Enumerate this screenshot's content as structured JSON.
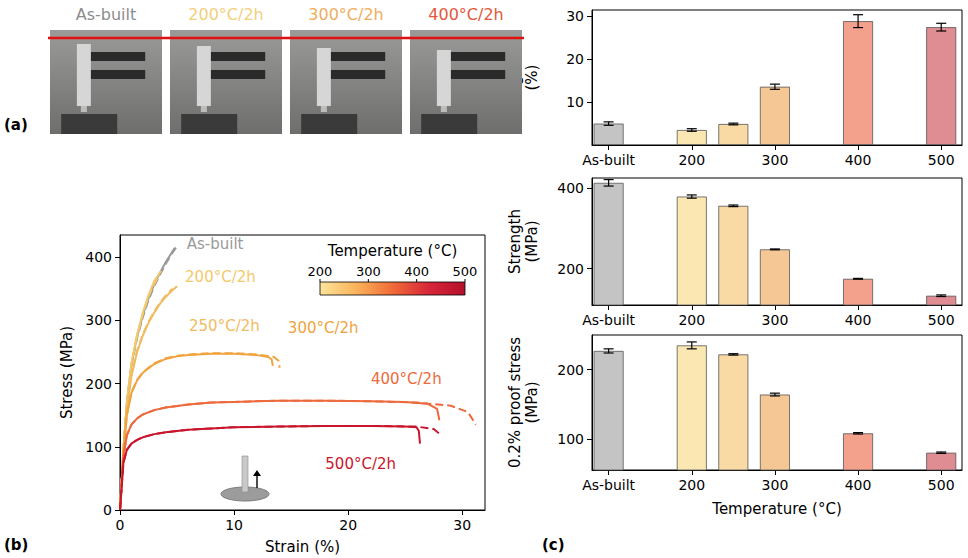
{
  "panel_labels": [
    "(a)",
    "(b)",
    "(c)"
  ],
  "photos": {
    "labels": [
      "As-built",
      "200°C/2h",
      "300°C/2h",
      "400°C/2h"
    ],
    "colors": [
      "#8c8c8c",
      "#f2cf7a",
      "#f0ad5c",
      "#e4573a"
    ]
  },
  "chart_data": [
    {
      "type": "line",
      "x_label": "Strain (%)",
      "y_label": "Stress (MPa)",
      "xlim": [
        0,
        32
      ],
      "xticks": [
        0,
        10,
        20,
        30
      ],
      "ylim": [
        0,
        435
      ],
      "yticks": [
        0,
        100,
        200,
        300,
        400
      ],
      "grid": false,
      "colorbar": {
        "title": "Temperature (°C)",
        "range": [
          200,
          500
        ],
        "ticks": [
          200,
          300,
          400,
          500
        ],
        "colors": [
          "#fde49a",
          "#f9b35a",
          "#f06b38",
          "#d7263a",
          "#b5102a"
        ]
      },
      "series": [
        {
          "name": "As-built",
          "color": "#9a9a9a",
          "line_style": "solid",
          "x": [
            0,
            0.3,
            0.6,
            1,
            1.5,
            2,
            2.5,
            3,
            3.5,
            4,
            4.5,
            4.8
          ],
          "values": [
            0,
            95,
            170,
            230,
            275,
            308,
            335,
            357,
            375,
            392,
            406,
            415
          ]
        },
        {
          "name": "As-built",
          "color": "#9a9a9a",
          "line_style": "dashed",
          "x": [
            0,
            0.3,
            0.6,
            1,
            1.5,
            2,
            2.5,
            3,
            3.5,
            4,
            4.5,
            5.1
          ],
          "values": [
            0,
            95,
            168,
            228,
            272,
            305,
            332,
            354,
            372,
            389,
            404,
            420
          ]
        },
        {
          "name": "200°C/2h",
          "color": "#f3c96a",
          "line_style": "solid",
          "x": [
            0,
            0.3,
            0.6,
            1,
            1.5,
            2,
            2.5,
            3,
            3.6
          ],
          "values": [
            0,
            95,
            170,
            232,
            278,
            312,
            340,
            362,
            378
          ]
        },
        {
          "name": "200°C/2h",
          "color": "#f3c96a",
          "line_style": "dashed",
          "x": [
            0,
            0.3,
            0.6,
            1,
            1.5,
            2,
            2.5,
            3,
            3.3
          ],
          "values": [
            0,
            95,
            170,
            231,
            276,
            310,
            338,
            358,
            367
          ]
        },
        {
          "name": "250°C/2h",
          "color": "#f1bb60",
          "line_style": "solid",
          "x": [
            0,
            0.3,
            0.6,
            1,
            1.5,
            2,
            2.5,
            3,
            3.5,
            4,
            4.5,
            5
          ],
          "values": [
            0,
            92,
            160,
            212,
            250,
            276,
            296,
            312,
            326,
            337,
            346,
            354
          ]
        },
        {
          "name": "250°C/2h",
          "color": "#f1bb60",
          "line_style": "dashed",
          "x": [
            0,
            0.3,
            0.6,
            1,
            1.5,
            2,
            2.5,
            3,
            3.5,
            4,
            4.6
          ],
          "values": [
            0,
            92,
            160,
            213,
            252,
            278,
            298,
            314,
            328,
            339,
            350
          ]
        },
        {
          "name": "300°C/2h",
          "color": "#f0a33e",
          "line_style": "solid",
          "x": [
            0,
            0.3,
            0.6,
            1,
            1.5,
            2,
            3,
            4,
            5,
            6,
            8,
            10,
            12,
            13,
            13.3,
            13.4
          ],
          "values": [
            0,
            90,
            150,
            185,
            205,
            217,
            231,
            239,
            243,
            245,
            247,
            247,
            245,
            242,
            238,
            228
          ]
        },
        {
          "name": "300°C/2h",
          "color": "#f0a33e",
          "line_style": "dashed",
          "x": [
            0,
            0.3,
            0.6,
            1,
            1.5,
            2,
            3,
            4,
            5,
            6,
            8,
            10,
            12,
            13.5,
            13.9,
            14
          ],
          "values": [
            0,
            90,
            150,
            186,
            206,
            218,
            232,
            240,
            244,
            246,
            248,
            248,
            246,
            242,
            236,
            225
          ]
        },
        {
          "name": "400°C/2h",
          "color": "#ec6a3c",
          "line_style": "solid",
          "x": [
            0,
            0.3,
            0.6,
            1,
            1.5,
            2,
            3,
            4,
            6,
            8,
            10,
            14,
            18,
            22,
            25,
            27,
            27.8,
            28
          ],
          "values": [
            0,
            85,
            118,
            135,
            145,
            151,
            158,
            162,
            167,
            170,
            171,
            173,
            173,
            172,
            171,
            168,
            160,
            142
          ]
        },
        {
          "name": "400°C/2h",
          "color": "#ec6a3c",
          "line_style": "dashed",
          "x": [
            0,
            0.3,
            0.6,
            1,
            1.5,
            2,
            3,
            4,
            6,
            8,
            10,
            14,
            18,
            22,
            26,
            29,
            30.5,
            31.2
          ],
          "values": [
            0,
            85,
            118,
            135,
            145,
            151,
            158,
            162,
            167,
            170,
            171,
            173,
            173,
            172,
            170,
            165,
            155,
            135
          ]
        },
        {
          "name": "500°C/2h",
          "color": "#c8162c",
          "line_style": "solid",
          "x": [
            0,
            0.3,
            0.6,
            1,
            1.5,
            2,
            3,
            4,
            6,
            8,
            10,
            14,
            18,
            22,
            25,
            26,
            26.2,
            26.3
          ],
          "values": [
            0,
            75,
            95,
            105,
            111,
            115,
            120,
            123,
            127,
            129,
            131,
            132,
            133,
            133,
            132,
            131,
            125,
            105
          ]
        },
        {
          "name": "500°C/2h",
          "color": "#c8162c",
          "line_style": "dashed",
          "x": [
            0,
            0.3,
            0.6,
            1,
            1.5,
            2,
            3,
            4,
            6,
            8,
            10,
            14,
            18,
            22,
            26,
            27.5,
            28.2
          ],
          "values": [
            0,
            75,
            95,
            105,
            111,
            115,
            120,
            123,
            127,
            129,
            131,
            132,
            133,
            133,
            132,
            128,
            118
          ]
        }
      ]
    },
    {
      "type": "bar",
      "y_label": "Elongation (%)",
      "x": [
        100,
        200,
        250,
        300,
        400,
        500
      ],
      "values": [
        5.0,
        3.5,
        4.9,
        13.6,
        28.9,
        27.5
      ],
      "errors": [
        0.4,
        0.3,
        0.2,
        0.6,
        1.5,
        0.9
      ],
      "colors": [
        "#c4c4c4",
        "#fbe7b2",
        "#f9d9a4",
        "#f5c795",
        "#f3a08c",
        "#df8c92"
      ],
      "xlim": [
        80,
        525
      ],
      "xticks": [
        {
          "value": 100,
          "label": "As-built"
        },
        200,
        300,
        400,
        500
      ],
      "ylim": [
        0,
        31.5
      ],
      "yticks": [
        10,
        20,
        30
      ],
      "grid": false
    },
    {
      "type": "bar",
      "y_label": "Strength (MPa)",
      "x": [
        100,
        200,
        250,
        300,
        400,
        500
      ],
      "values": [
        413,
        379,
        356,
        248,
        175,
        133
      ],
      "errors": [
        8,
        4,
        2,
        1,
        1,
        2
      ],
      "colors": [
        "#c4c4c4",
        "#fbe7b2",
        "#f9d9a4",
        "#f5c795",
        "#f3a08c",
        "#df8c92"
      ],
      "xlim": [
        80,
        525
      ],
      "xticks": [
        {
          "value": 100,
          "label": "As-built"
        },
        200,
        300,
        400,
        500
      ],
      "ylim": [
        110,
        425
      ],
      "yticks": [
        200,
        400
      ],
      "grid": false
    },
    {
      "type": "bar",
      "y_label": "0.2% proof stress (MPa)",
      "x_label": "Temperature (°C)",
      "x": [
        100,
        200,
        250,
        300,
        400,
        500
      ],
      "values": [
        227,
        235,
        222,
        164,
        108,
        80
      ],
      "errors": [
        3,
        5,
        1,
        2,
        1,
        1
      ],
      "colors": [
        "#c4c4c4",
        "#fbe7b2",
        "#f9d9a4",
        "#f5c795",
        "#f3a08c",
        "#df8c92"
      ],
      "xlim": [
        80,
        525
      ],
      "xticks": [
        {
          "value": 100,
          "label": "As-built"
        },
        200,
        300,
        400,
        500
      ],
      "ylim": [
        55,
        250
      ],
      "yticks": [
        100,
        200
      ],
      "grid": false
    }
  ]
}
